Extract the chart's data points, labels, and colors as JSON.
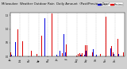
{
  "title": "Milwaukee  Weather Outdoor Rain  Daily Amount  (Past/Previous Year)",
  "n_days": 365,
  "background_color": "#d0d0d0",
  "plot_bg_color": "#ffffff",
  "current_color": "#0000dd",
  "previous_color": "#dd0000",
  "legend_label_current": "Current",
  "legend_label_previous": "Previous",
  "ylim": [
    0,
    1.6
  ],
  "seed": 42,
  "gridline_color": "#aaaaaa",
  "month_starts": [
    0,
    31,
    59,
    90,
    120,
    151,
    181,
    212,
    243,
    273,
    304,
    334
  ],
  "month_labels": [
    "Jan",
    "Feb",
    "Mar",
    "Apr",
    "May",
    "Jun",
    "Jul",
    "Aug",
    "Sep",
    "Oct",
    "Nov",
    "Dec"
  ]
}
